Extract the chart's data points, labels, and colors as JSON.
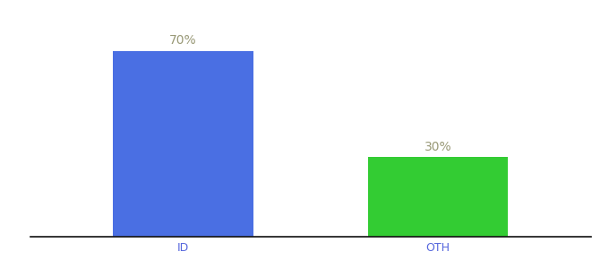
{
  "categories": [
    "ID",
    "OTH"
  ],
  "values": [
    70,
    30
  ],
  "bar_colors": [
    "#4a6fe3",
    "#33cc33"
  ],
  "bar_labels": [
    "70%",
    "30%"
  ],
  "background_color": "#ffffff",
  "label_text_color": "#999977",
  "tick_label_color": "#5566dd",
  "xlim": [
    -0.6,
    1.6
  ],
  "ylim": [
    0,
    82
  ],
  "bar_width": 0.55,
  "label_fontsize": 10,
  "tick_fontsize": 9,
  "spine_color": "#111111"
}
